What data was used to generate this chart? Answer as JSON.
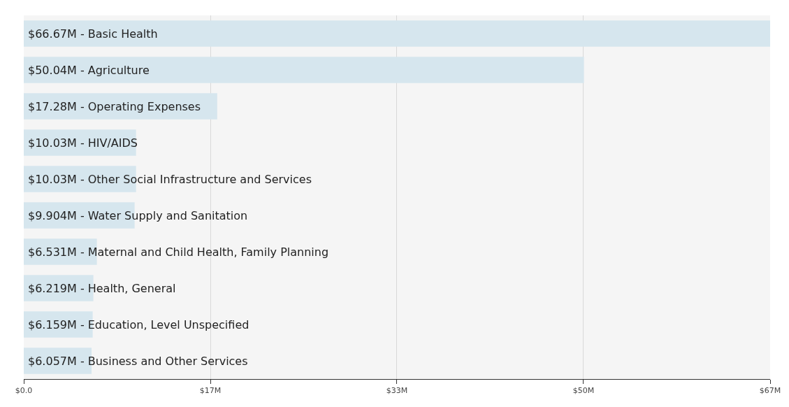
{
  "chart_data": {
    "type": "bar",
    "orientation": "horizontal",
    "categories": [
      "$66.67M - Basic Health",
      "$50.04M - Agriculture",
      "$17.28M - Operating Expenses",
      "$10.03M - HIV/AIDS",
      "$10.03M - Other Social Infrastructure and Services",
      "$9.904M - Water Supply and Sanitation",
      "$6.531M - Maternal and Child Health, Family Planning",
      "$6.219M - Health, General",
      "$6.159M - Education, Level Unspecified",
      "$6.057M - Business and Other Services"
    ],
    "values": [
      66.67,
      50.04,
      17.28,
      10.03,
      10.03,
      9.904,
      6.531,
      6.219,
      6.159,
      6.057
    ],
    "color": "#d6e6ee",
    "xlim": [
      0,
      66.67
    ],
    "xticks": [
      {
        "value": 0,
        "label": "$0.0"
      },
      {
        "value": 16.67,
        "label": "$17M"
      },
      {
        "value": 33.33,
        "label": "$33M"
      },
      {
        "value": 50,
        "label": "$50M"
      },
      {
        "value": 66.67,
        "label": "$67M"
      }
    ],
    "grid": "x",
    "tick_labels": "x"
  }
}
